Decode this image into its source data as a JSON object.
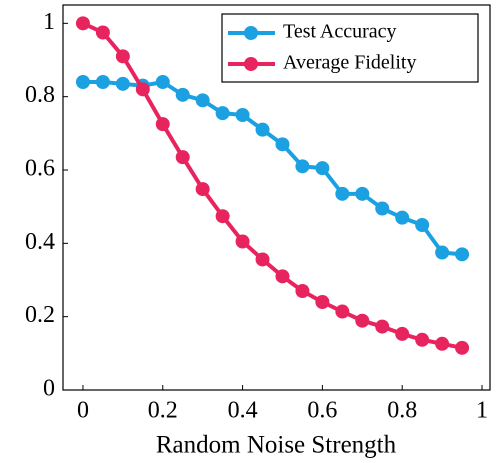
{
  "chart_data": {
    "type": "line",
    "x_label": "Random Noise Strength",
    "x": [
      0,
      0.05,
      0.1,
      0.15,
      0.2,
      0.25,
      0.3,
      0.35,
      0.4,
      0.45,
      0.5,
      0.55,
      0.6,
      0.65,
      0.7,
      0.75,
      0.8,
      0.85,
      0.9,
      0.95
    ],
    "series": [
      {
        "name": "Test Accuracy",
        "color": "#1ba1e2",
        "values": [
          0.84,
          0.84,
          0.835,
          0.83,
          0.84,
          0.805,
          0.79,
          0.755,
          0.75,
          0.71,
          0.67,
          0.61,
          0.605,
          0.535,
          0.535,
          0.495,
          0.47,
          0.45,
          0.375,
          0.37
        ]
      },
      {
        "name": "Average Fidelity",
        "color": "#e8245f",
        "values": [
          1.0,
          0.975,
          0.91,
          0.82,
          0.725,
          0.635,
          0.548,
          0.474,
          0.405,
          0.356,
          0.31,
          0.27,
          0.24,
          0.214,
          0.189,
          0.173,
          0.153,
          0.137,
          0.126,
          0.115
        ]
      }
    ],
    "xlim": [
      -0.05,
      1.02
    ],
    "ylim": [
      0,
      1.05
    ],
    "xticks": [
      0,
      0.2,
      0.4,
      0.6,
      0.8,
      1
    ],
    "yticks": [
      0,
      0.2,
      0.4,
      0.6,
      0.8,
      1
    ],
    "legend": "upper right"
  }
}
